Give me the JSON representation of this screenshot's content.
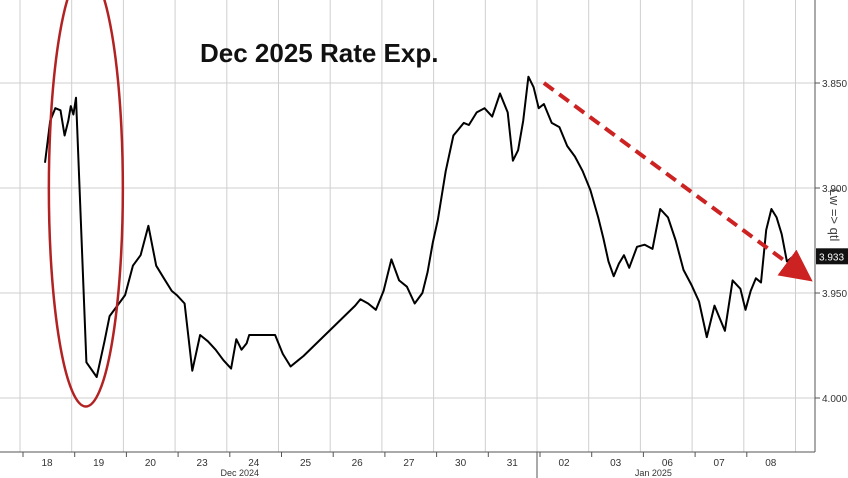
{
  "chart_data": {
    "type": "line",
    "title": "Dec 2025 Rate Exp.",
    "axis_side_label": "Lw => qtl",
    "y_axis_inverted": true,
    "y_ticks": [
      "3.850",
      "3.900",
      "3.950",
      "4.000"
    ],
    "last_value_label": "3.933",
    "ylim": [
      3.97,
      3.82
    ],
    "grid": true,
    "x_ticks": [
      "18",
      "19",
      "20",
      "23",
      "24",
      "25",
      "26",
      "27",
      "30",
      "31",
      "02",
      "03",
      "06",
      "07",
      "08"
    ],
    "x_group_labels": [
      "Dec 2024",
      "Jan 2025"
    ],
    "series": [
      {
        "color": "#000000",
        "x": [
          0,
          0.1,
          0.2,
          0.3,
          0.38,
          0.45,
          0.5,
          0.55,
          0.6,
          0.8,
          1.0,
          1.15,
          1.25,
          1.4,
          1.55,
          1.7,
          1.85,
          2.0,
          2.15,
          2.3,
          2.45,
          2.55,
          2.7,
          2.85,
          3.0,
          3.15,
          3.3,
          3.45,
          3.6,
          3.7,
          3.8,
          3.9,
          3.95,
          4.05,
          4.15,
          4.3,
          4.45,
          4.6,
          4.75,
          4.9,
          5.0,
          6.0,
          6.1,
          6.25,
          6.4,
          6.55,
          6.7,
          6.85,
          7.0,
          7.15,
          7.3,
          7.4,
          7.5,
          7.6,
          7.75,
          7.9,
          8.0,
          8.1,
          8.2,
          8.35,
          8.5,
          8.65,
          8.8,
          8.95,
          9.05,
          9.15,
          9.25,
          9.35,
          9.45,
          9.55,
          9.65,
          9.8,
          9.95,
          10.1,
          10.25,
          10.4,
          10.55,
          10.7,
          10.8,
          10.9,
          11.0,
          11.1,
          11.2,
          11.3,
          11.45,
          11.6,
          11.75,
          11.9,
          12.05,
          12.2,
          12.35,
          12.5,
          12.65,
          12.8,
          12.95,
          13.05,
          13.15,
          13.3,
          13.45,
          13.55,
          13.65,
          13.75,
          13.85,
          13.95,
          14.05,
          14.15,
          14.25,
          14.35,
          14.45
        ],
        "values": [
          3.888,
          3.868,
          3.862,
          3.863,
          3.875,
          3.868,
          3.861,
          3.865,
          3.857,
          3.983,
          3.99,
          3.973,
          3.961,
          3.956,
          3.951,
          3.937,
          3.932,
          3.918,
          3.937,
          3.943,
          3.949,
          3.951,
          3.955,
          3.987,
          3.97,
          3.973,
          3.977,
          3.982,
          3.986,
          3.972,
          3.977,
          3.974,
          3.97,
          3.97,
          3.97,
          3.97,
          3.97,
          3.979,
          3.985,
          3.982,
          3.98,
          3.956,
          3.953,
          3.955,
          3.958,
          3.949,
          3.934,
          3.944,
          3.947,
          3.955,
          3.95,
          3.94,
          3.926,
          3.915,
          3.892,
          3.875,
          3.872,
          3.869,
          3.87,
          3.864,
          3.862,
          3.866,
          3.855,
          3.864,
          3.887,
          3.882,
          3.868,
          3.847,
          3.852,
          3.862,
          3.86,
          3.869,
          3.871,
          3.88,
          3.885,
          3.892,
          3.901,
          3.914,
          3.924,
          3.935,
          3.942,
          3.936,
          3.932,
          3.938,
          3.928,
          3.927,
          3.929,
          3.91,
          3.914,
          3.925,
          3.939,
          3.946,
          3.954,
          3.971,
          3.956,
          3.962,
          3.968,
          3.944,
          3.948,
          3.958,
          3.949,
          3.943,
          3.945,
          3.92,
          3.91,
          3.914,
          3.922,
          3.935,
          3.933
        ]
      }
    ],
    "trend_arrow": {
      "color": "#cc2222",
      "start": [
        9.65,
        3.85
      ],
      "end": [
        14.6,
        3.94
      ]
    },
    "highlight_ellipse": {
      "color": "#b22222",
      "x_center": 0.5,
      "y_center": 3.905
    }
  }
}
